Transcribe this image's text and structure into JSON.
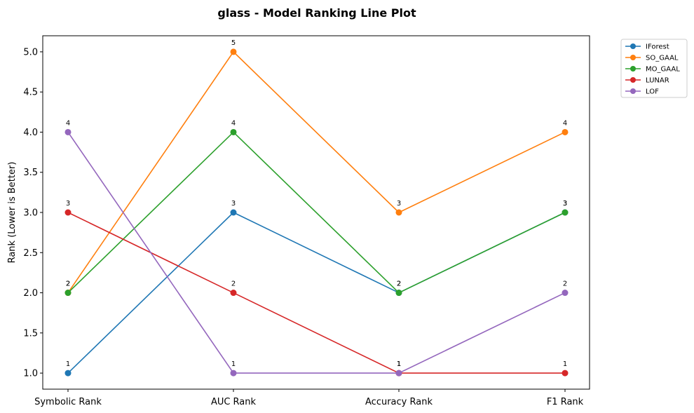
{
  "chart_data": {
    "type": "line",
    "title": "glass - Model Ranking Line Plot",
    "xlabel": "",
    "ylabel": "Rank (Lower is Better)",
    "categories": [
      "Symbolic Rank",
      "AUC Rank",
      "Accuracy Rank",
      "F1 Rank"
    ],
    "ylim": [
      0.8,
      5.2
    ],
    "yticks": [
      "1.0",
      "1.5",
      "2.0",
      "2.5",
      "3.0",
      "3.5",
      "4.0",
      "4.5",
      "5.0"
    ],
    "grid": false,
    "legend_position": "outside-top-right",
    "series": [
      {
        "name": "IForest",
        "color": "#1f77b4",
        "values": [
          1,
          3,
          2,
          3
        ]
      },
      {
        "name": "SO_GAAL",
        "color": "#ff7f0e",
        "values": [
          2,
          5,
          3,
          4
        ]
      },
      {
        "name": "MO_GAAL",
        "color": "#2ca02c",
        "values": [
          2,
          4,
          2,
          3
        ]
      },
      {
        "name": "LUNAR",
        "color": "#d62728",
        "values": [
          3,
          2,
          1,
          1
        ]
      },
      {
        "name": "LOF",
        "color": "#9467bd",
        "values": [
          4,
          1,
          1,
          2
        ]
      }
    ]
  }
}
